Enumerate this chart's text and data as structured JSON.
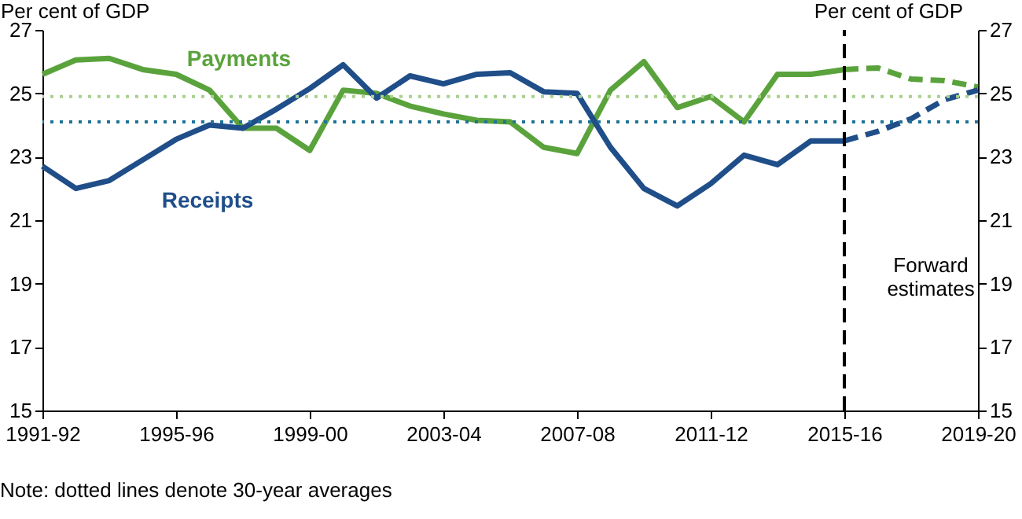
{
  "chart_data": {
    "type": "line",
    "ylabel": "Per cent of GDP",
    "y2label": "Per cent of GDP",
    "categories": [
      "1991-92",
      null,
      null,
      null,
      "1995-96",
      null,
      null,
      null,
      "1999-00",
      null,
      null,
      null,
      "2003-04",
      null,
      null,
      null,
      "2007-08",
      null,
      null,
      null,
      "2011-12",
      null,
      null,
      null,
      "2015-16",
      null,
      null,
      null,
      "2019-20"
    ],
    "series": [
      {
        "name": "Payments",
        "color": "#5aa33c",
        "line_style": "solid",
        "values": [
          25.6,
          26.05,
          26.1,
          25.75,
          25.6,
          25.1,
          23.9,
          23.9,
          23.2,
          25.1,
          25.0,
          24.6,
          24.35,
          24.15,
          24.1,
          23.3,
          23.1,
          25.1,
          26.0,
          24.55,
          24.9,
          24.1,
          25.6,
          25.6,
          25.75,
          null,
          null,
          null,
          null
        ]
      },
      {
        "name": "Receipts",
        "color": "#1f4e89",
        "line_style": "solid",
        "values": [
          22.7,
          22.0,
          22.25,
          22.9,
          23.55,
          24.0,
          23.9,
          24.5,
          25.15,
          25.9,
          24.85,
          25.55,
          25.3,
          25.6,
          25.65,
          25.05,
          25.0,
          23.3,
          22.0,
          21.45,
          22.15,
          23.05,
          22.75,
          23.5,
          23.5,
          null,
          null,
          null,
          null
        ]
      },
      {
        "color": "#5aa33c",
        "line_style": "dashed",
        "values": [
          null,
          null,
          null,
          null,
          null,
          null,
          null,
          null,
          null,
          null,
          null,
          null,
          null,
          null,
          null,
          null,
          null,
          null,
          null,
          null,
          null,
          null,
          null,
          null,
          25.75,
          25.8,
          25.45,
          25.4,
          25.2
        ]
      },
      {
        "color": "#1f4e89",
        "line_style": "dashed",
        "values": [
          null,
          null,
          null,
          null,
          null,
          null,
          null,
          null,
          null,
          null,
          null,
          null,
          null,
          null,
          null,
          null,
          null,
          null,
          null,
          null,
          null,
          null,
          null,
          null,
          23.5,
          23.8,
          24.2,
          24.8,
          25.1
        ]
      }
    ],
    "ylim": [
      15,
      27
    ],
    "yticks": [
      15,
      17,
      19,
      21,
      23,
      25,
      27
    ],
    "y2lim": [
      15,
      27
    ],
    "y2ticks": [
      15,
      17,
      19,
      21,
      23,
      25,
      27
    ],
    "ref_lines": [
      {
        "axis": "y",
        "value": 24.9,
        "color": "#a9d18e",
        "line_style": "dotted"
      },
      {
        "axis": "y",
        "value": 24.1,
        "color": "#1f7398",
        "line_style": "dotted"
      },
      {
        "axis": "x",
        "value": "2015-16",
        "color": "#000000",
        "line_style": "dashed"
      }
    ],
    "annotations": [
      "Forward estimates",
      "Note: dotted lines denote 30-year averages"
    ],
    "grid": false,
    "marker": "none"
  }
}
